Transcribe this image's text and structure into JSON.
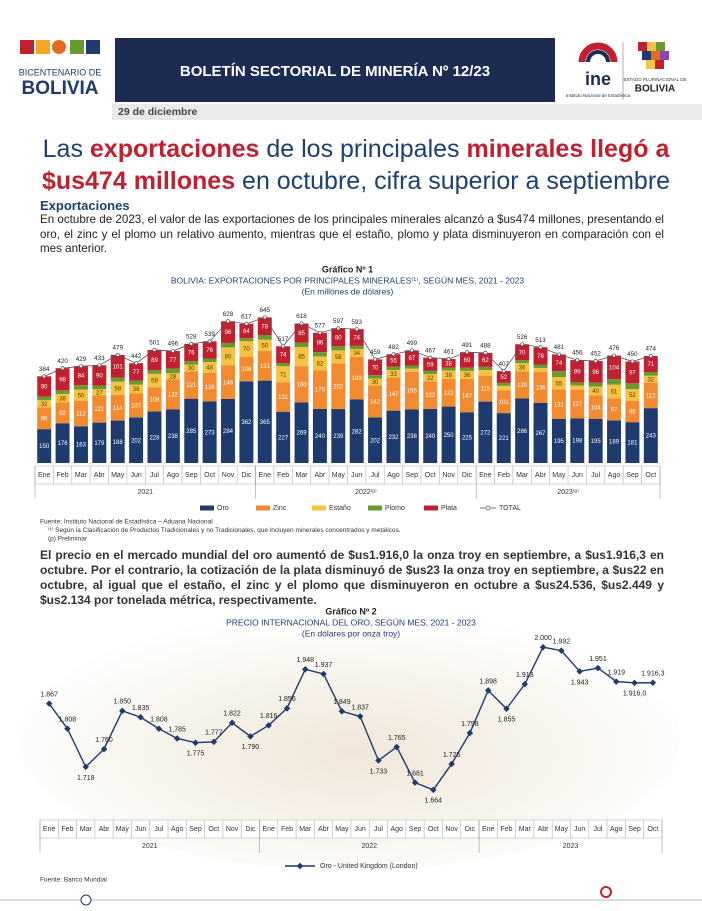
{
  "header": {
    "logo_top": "BICENTENARIO DE",
    "logo_bottom": "BOLIVIA",
    "banner": "BOLETÍN SECTORIAL DE MINERÍA Nº 12/23",
    "ine": "ine",
    "ine_caption": "Instituto Nacional de Estadística",
    "state_top": "ESTADO PLURINACIONAL DE",
    "state_bottom": "BOLIVIA",
    "date": "29 de diciembre"
  },
  "headline": [
    [
      {
        "text": "Las ",
        "highlight": false
      },
      {
        "text": "exportaciones",
        "highlight": true
      },
      {
        "text": " de los principales ",
        "highlight": false
      },
      {
        "text": "minerales llegó a",
        "highlight": true
      }
    ],
    [
      {
        "text": "$us474 millones",
        "highlight": true
      },
      {
        "text": " en octubre, cifra superior a septiembre",
        "highlight": false
      }
    ]
  ],
  "section": "Exportaciones",
  "paragraphs": [
    "En octubre de 2023, el valor de las exportaciones de los principales minerales alcanzó a $us474 millones, presentando el oro, el zinc y el plomo un relativo aumento, mientras que el estaño, plomo y plata disminuyeron en comparación con el mes anterior.",
    "El precio en el mercado mundial del oro aumentó de $us1.916,0 la onza troy en septiembre, a $us1.916,3 en octubre. Por el contrario, la cotización de la plata disminuyó de $us23 la onza troy en septiembre, a $us22 en octubre, al igual que el estaño, el zinc y el plomo que disminuyeron en octubre a $us24.536, $us2.449 y $us2.134 por tonelada métrica, respectivamente."
  ],
  "chart_data": [
    {
      "type": "bar",
      "stacked": true,
      "label": "Gráfico Nº 1",
      "title": "BOLIVIA: EXPORTACIONES POR PRINCIPALES MINERALES⁽¹⁾, SEGÚN MES, 2021 - 2023",
      "subtitle": "(En millones de dólares)",
      "categories": [
        "Ene",
        "Feb",
        "Mar",
        "Abr",
        "May",
        "Jun",
        "Jul",
        "Ago",
        "Sep",
        "Oct",
        "Nov",
        "Dic",
        "Ene",
        "Feb",
        "Mar",
        "Abr",
        "May",
        "Jun",
        "Jul",
        "Ago",
        "Sep",
        "Oct",
        "Nov",
        "Dic",
        "Ene",
        "Feb",
        "Mar",
        "Abr",
        "May",
        "Jun",
        "Jul",
        "Ago",
        "Sep",
        "Oct"
      ],
      "groups": [
        "2021",
        "2022⁽ᵖ⁾",
        "2023⁽ᵖ⁾"
      ],
      "series": [
        {
          "name": "Oro",
          "color": "#1f3a6e",
          "values": [
            150,
            176,
            163,
            179,
            188,
            202,
            228,
            238,
            285,
            273,
            284,
            362,
            365,
            227,
            269,
            240,
            239,
            282,
            202,
            232,
            238,
            240,
            250,
            225,
            272,
            221,
            286,
            267,
            195,
            198,
            195,
            189,
            181,
            243
          ]
        },
        {
          "name": "Zinc",
          "color": "#f28b30",
          "values": [
            96,
            92,
            112,
            121,
            114,
            107,
            108,
            132,
            121,
            126,
            148,
            108,
            131,
            131,
            160,
            170,
            202,
            189,
            142,
            147,
            165,
            122,
            122,
            147,
            115,
            101,
            120,
            136,
            131,
            127,
            104,
            97,
            95,
            112
          ]
        },
        {
          "name": "Estaño",
          "color": "#f5c242",
          "values": [
            32,
            38,
            50,
            27,
            58,
            38,
            59,
            28,
            30,
            48,
            80,
            70,
            50,
            71,
            85,
            62,
            58,
            34,
            30,
            33,
            15,
            32,
            38,
            36,
            25,
            20,
            36,
            18,
            55,
            18,
            40,
            61,
            52,
            32
          ]
        },
        {
          "name": "Plomo",
          "color": "#6a9a2e",
          "values": [
            16,
            16,
            20,
            16,
            18,
            18,
            17,
            21,
            16,
            16,
            20,
            13,
            21,
            14,
            19,
            19,
            18,
            14,
            15,
            15,
            14,
            14,
            13,
            14,
            14,
            13,
            14,
            14,
            26,
            14,
            17,
            25,
            25,
            16
          ]
        },
        {
          "name": "Plata",
          "color": "#c0202f",
          "values": [
            90,
            98,
            84,
            90,
            101,
            77,
            89,
            77,
            76,
            76,
            96,
            64,
            78,
            74,
            85,
            86,
            80,
            74,
            70,
            55,
            67,
            59,
            38,
            69,
            62,
            52,
            70,
            78,
            74,
            99,
            96,
            104,
            97,
            71
          ]
        }
      ],
      "total": {
        "name": "TOTAL",
        "color": "#555555",
        "values": [
          384,
          420,
          429,
          433,
          479,
          442,
          501,
          496,
          528,
          539,
          628,
          617,
          645,
          517,
          618,
          577,
          597,
          593,
          459,
          482,
          499,
          467,
          461,
          491,
          488,
          407,
          526,
          513,
          481,
          456,
          452,
          476,
          450,
          474
        ]
      },
      "ylim": [
        0,
        700
      ],
      "notes": [
        "Fuente: Instituto Nacional de Estadística – Aduana Nacional",
        "⁽¹⁾ Según la Clasificación de Productos Tradicionales y no Tradicionales, que incluyen minerales concentrados y metálicos.",
        "(p) Preliminar"
      ]
    },
    {
      "type": "line",
      "label": "Gráfico Nº 2",
      "title": "PRECIO INTERNACIONAL DEL ORO, SEGÚN MES, 2021 - 2023",
      "subtitle": "(En dólares por onza troy)",
      "categories": [
        "Ene",
        "Feb",
        "Mar",
        "Abr",
        "May",
        "Jun",
        "Jul",
        "Ago",
        "Sep",
        "Oct",
        "Nov",
        "Dic",
        "Ene",
        "Feb",
        "Mar",
        "Abr",
        "May",
        "Jun",
        "Jul",
        "Ago",
        "Sep",
        "Oct",
        "Nov",
        "Dic",
        "Ene",
        "Feb",
        "Mar",
        "Abr",
        "May",
        "Jun",
        "Jul",
        "Ago",
        "Sep",
        "Oct"
      ],
      "groups": [
        "2021",
        "2022",
        "2023"
      ],
      "series": [
        {
          "name": "Oro - United Kingdom (London)",
          "color": "#1f3a6e",
          "values": [
            1867,
            1808,
            1718,
            1760,
            1850,
            1835,
            1808,
            1785,
            1775,
            1777,
            1822,
            1790,
            1816,
            1856,
            1948,
            1937,
            1849,
            1837,
            1733,
            1765,
            1681,
            1664,
            1725,
            1798,
            1898,
            1855,
            1913,
            2000,
            1992,
            1943,
            1951,
            1919,
            1916.0,
            1916.3
          ],
          "value_labels": [
            "1.867",
            "1.808",
            "1.718",
            "1.760",
            "1.850",
            "1.835",
            "1.808",
            "1.785",
            "1.775",
            "1.777",
            "1.822",
            "1.790",
            "1.816",
            "1.856",
            "1.948",
            "1.937",
            "1.849",
            "1.837",
            "1.733",
            "1.765",
            "1.681",
            "1.664",
            "1.725",
            "1.798",
            "1.898",
            "1.855",
            "1.913",
            "2.000",
            "1.992",
            "1.943",
            "1.951",
            "1.919",
            "1.916,0",
            "1.916,3"
          ]
        }
      ],
      "ylim": [
        1600,
        2050
      ],
      "notes": [
        "Fuente: Banco Mundial"
      ]
    }
  ]
}
